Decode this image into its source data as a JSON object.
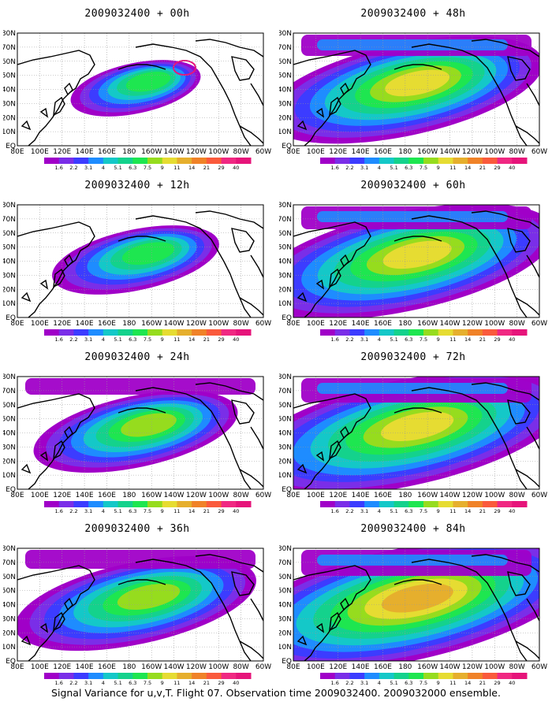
{
  "panels": [
    {
      "title": "2009032400 + 00h",
      "spread": 0.7,
      "intensity": 1.0,
      "core": 1
    },
    {
      "title": "2009032400 + 48h",
      "spread": 1.9,
      "intensity": 1.45,
      "core": 0
    },
    {
      "title": "2009032400 + 12h",
      "spread": 1.0,
      "intensity": 1.1,
      "core": 0
    },
    {
      "title": "2009032400 + 60h",
      "spread": 2.1,
      "intensity": 1.55,
      "core": 0
    },
    {
      "title": "2009032400 + 24h",
      "spread": 1.3,
      "intensity": 1.2,
      "core": 0
    },
    {
      "title": "2009032400 + 72h",
      "spread": 2.3,
      "intensity": 1.6,
      "core": 0
    },
    {
      "title": "2009032400 + 36h",
      "spread": 1.6,
      "intensity": 1.3,
      "core": 0
    },
    {
      "title": "2009032400 + 84h",
      "spread": 2.5,
      "intensity": 1.7,
      "core": 0
    }
  ],
  "lat_labels": [
    "80N",
    "70N",
    "60N",
    "50N",
    "40N",
    "30N",
    "20N",
    "10N",
    "EQ"
  ],
  "lon_labels": [
    "80E",
    "100E",
    "120E",
    "140E",
    "160E",
    "180",
    "160W",
    "140W",
    "120W",
    "100W",
    "80W",
    "60W"
  ],
  "colorbar": {
    "labels": [
      "1.6",
      "2.2",
      "3.1",
      "4",
      "5.1",
      "6.3",
      "7.5",
      "9",
      "11",
      "14",
      "21",
      "29",
      "40"
    ],
    "colors": [
      "#a000c8",
      "#7a2ee8",
      "#3c3cff",
      "#1e8cff",
      "#14c8c8",
      "#14d28c",
      "#1ee650",
      "#96dc1e",
      "#e6dc32",
      "#e6af2d",
      "#f08228",
      "#fa5a3c",
      "#f02882",
      "#e6147a"
    ]
  },
  "caption": "Signal Variance for u,v,T. Flight 07. Observation time 2009032400. 2009032000 ensemble."
}
